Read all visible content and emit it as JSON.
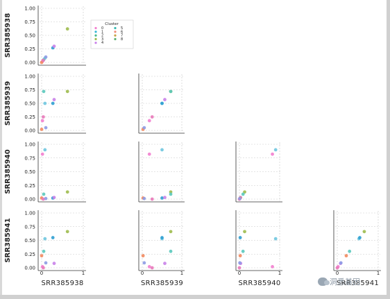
{
  "chart_data": {
    "type": "scatter",
    "layout": "pairplot-lower-triangle",
    "variables": [
      "SRR385938",
      "SRR385939",
      "SRR385940",
      "SRR385941"
    ],
    "x_tick_labels": [
      "0",
      "1"
    ],
    "y_tick_labels": [
      "0.00",
      "0.25",
      "0.50",
      "0.75",
      "1.00"
    ],
    "xlim": [
      0,
      1
    ],
    "ylim": [
      0,
      1
    ],
    "grid": true,
    "legend": {
      "title": "Cluster",
      "placement": "upper-right of top panel",
      "entries": [
        "0",
        "1",
        "2",
        "3",
        "4",
        "5",
        "6",
        "7",
        "8"
      ]
    },
    "colors": [
      "#f27fcf",
      "#33b5d6",
      "#45b98c",
      "#9dbb4d",
      "#c982e9",
      "#36b9b0",
      "#ef8a77",
      "#c9a245",
      "#5aaf6e"
    ],
    "points": [
      {
        "name": "c0",
        "color": "#f27fcf",
        "vals": [
          0.02,
          0.18,
          0.82,
          0.02
        ]
      },
      {
        "name": "c1",
        "color": "#6fc7df",
        "vals": [
          0.08,
          0.5,
          0.9,
          0.53
        ]
      },
      {
        "name": "c2",
        "color": "#2f9fd2",
        "vals": [
          0.27,
          0.5,
          0.02,
          0.55
        ]
      },
      {
        "name": "c3",
        "color": "#9dbb4d",
        "vals": [
          0.62,
          0.72,
          0.13,
          0.66
        ]
      },
      {
        "name": "c4",
        "color": "#c982e9",
        "vals": [
          0.3,
          0.57,
          0.03,
          0.08
        ]
      },
      {
        "name": "c5",
        "color": "#5ac9bd",
        "vals": [
          0.05,
          0.72,
          0.09,
          0.3
        ]
      },
      {
        "name": "c6",
        "color": "#f28a5f",
        "vals": [
          0.0,
          0.02,
          0.02,
          0.22
        ]
      },
      {
        "name": "c7",
        "color": "#e879b9",
        "vals": [
          0.04,
          0.25,
          0.0,
          0.0
        ]
      },
      {
        "name": "c8",
        "color": "#8d9be4",
        "vals": [
          0.1,
          0.05,
          0.01,
          0.09
        ]
      }
    ]
  }
}
